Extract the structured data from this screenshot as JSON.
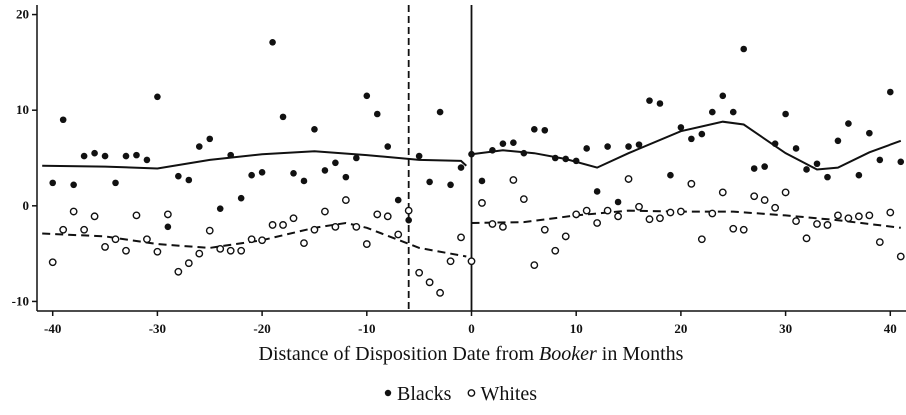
{
  "chart_data": {
    "type": "scatter",
    "x_label": {
      "before": "Distance of Disposition Date from",
      "italic": "Booker",
      "after": "in Months"
    },
    "xlim": [
      -41.5,
      41.5
    ],
    "ylim": [
      -11,
      21
    ],
    "xticks": [
      -40,
      -30,
      -20,
      -10,
      0,
      10,
      20,
      30,
      40
    ],
    "yticks": [
      -10,
      0,
      10,
      20
    ],
    "reference_lines": [
      {
        "x": 0,
        "style": "solid"
      },
      {
        "x": -6,
        "style": "dashed"
      }
    ],
    "x": [
      -40,
      -39,
      -38,
      -37,
      -36,
      -35,
      -34,
      -33,
      -32,
      -31,
      -30,
      -29,
      -28,
      -27,
      -26,
      -25,
      -24,
      -23,
      -22,
      -21,
      -20,
      -19,
      -18,
      -17,
      -16,
      -15,
      -14,
      -13,
      -12,
      -11,
      -10,
      -9,
      -8,
      -7,
      -6,
      -5,
      -4,
      -3,
      -2,
      -1,
      0,
      1,
      2,
      3,
      4,
      5,
      6,
      7,
      8,
      9,
      10,
      11,
      12,
      13,
      14,
      15,
      16,
      17,
      18,
      19,
      20,
      21,
      22,
      23,
      24,
      25,
      26,
      27,
      28,
      29,
      30,
      31,
      32,
      33,
      34,
      35,
      36,
      37,
      38,
      39,
      40,
      41
    ],
    "series": [
      {
        "name": "Blacks",
        "color": "#111111",
        "marker": "filled",
        "line_style": "solid",
        "values": [
          2.4,
          9.0,
          2.2,
          5.2,
          5.5,
          5.2,
          2.4,
          5.2,
          5.3,
          4.8,
          11.4,
          -2.2,
          3.1,
          2.7,
          6.2,
          7.0,
          -0.3,
          5.3,
          0.8,
          3.2,
          3.5,
          17.1,
          9.3,
          3.4,
          2.6,
          8.0,
          3.7,
          4.5,
          3.0,
          5.0,
          11.5,
          9.6,
          6.2,
          0.6,
          -1.5,
          5.2,
          2.5,
          9.8,
          2.2,
          4.0,
          5.4,
          2.6,
          5.8,
          6.5,
          6.6,
          5.5,
          8.0,
          7.9,
          5.0,
          4.9,
          4.7,
          6.0,
          1.5,
          6.2,
          0.4,
          6.2,
          6.4,
          11.0,
          10.7,
          3.2,
          8.2,
          7.0,
          7.5,
          9.8,
          11.5,
          9.8,
          16.4,
          3.9,
          4.1,
          6.5,
          9.6,
          6.0,
          3.8,
          4.4,
          3.0,
          6.8,
          8.6,
          3.2,
          7.6,
          4.8,
          11.9,
          4.6
        ],
        "fit_x": [
          -41,
          -35,
          -30,
          -25,
          -20,
          -15,
          -10,
          -5,
          -1,
          -0.5,
          null,
          0,
          3,
          6,
          9,
          12,
          15,
          20,
          24,
          26,
          30,
          33,
          35,
          38,
          41
        ],
        "fit": [
          4.2,
          4.1,
          3.9,
          4.8,
          5.4,
          5.7,
          5.3,
          4.8,
          4.7,
          4.2,
          null,
          5.4,
          5.8,
          5.5,
          4.9,
          4.0,
          5.5,
          7.8,
          8.8,
          8.5,
          5.5,
          3.8,
          4.0,
          5.6,
          6.8
        ]
      },
      {
        "name": "Whites",
        "color": "#111111",
        "marker": "open",
        "line_style": "dashed",
        "values": [
          -5.9,
          -2.5,
          -0.6,
          -2.5,
          -1.1,
          -4.3,
          -3.5,
          -4.7,
          -1.0,
          -3.5,
          -4.8,
          -0.9,
          -6.9,
          -6.0,
          -5.0,
          -2.6,
          -4.5,
          -4.7,
          -4.7,
          -3.5,
          -3.6,
          -2.0,
          -2.0,
          -1.3,
          -3.9,
          -2.5,
          -0.6,
          -2.2,
          0.6,
          -2.2,
          -4.0,
          -0.9,
          -1.1,
          -3.0,
          -0.5,
          -7.0,
          -8.0,
          -9.1,
          -5.8,
          -3.3,
          -5.8,
          0.3,
          -1.9,
          -2.2,
          2.7,
          0.7,
          -6.2,
          -2.5,
          -4.7,
          -3.2,
          -0.9,
          -0.5,
          -1.8,
          -0.5,
          -1.1,
          2.8,
          -0.1,
          -1.4,
          -1.3,
          -0.7,
          -0.6,
          2.3,
          -3.5,
          -0.8,
          1.4,
          -2.4,
          -2.5,
          1.0,
          0.6,
          -0.2,
          1.4,
          -1.6,
          -3.4,
          -1.9,
          -2.0,
          -1.0,
          -1.3,
          -1.1,
          -1.0,
          -3.8,
          -0.7,
          -5.3
        ],
        "fit_x": [
          -41,
          -35,
          -30,
          -25,
          -20,
          -15,
          -12,
          -10,
          -5,
          -0.5,
          null,
          0,
          5,
          10,
          15,
          20,
          25,
          30,
          35,
          41
        ],
        "fit": [
          -2.9,
          -3.2,
          -4.0,
          -4.4,
          -3.6,
          -2.3,
          -1.8,
          -2.3,
          -4.4,
          -5.3,
          null,
          -1.8,
          -1.7,
          -1.0,
          -0.5,
          -0.6,
          -0.6,
          -1.0,
          -1.5,
          -2.3
        ]
      }
    ]
  }
}
